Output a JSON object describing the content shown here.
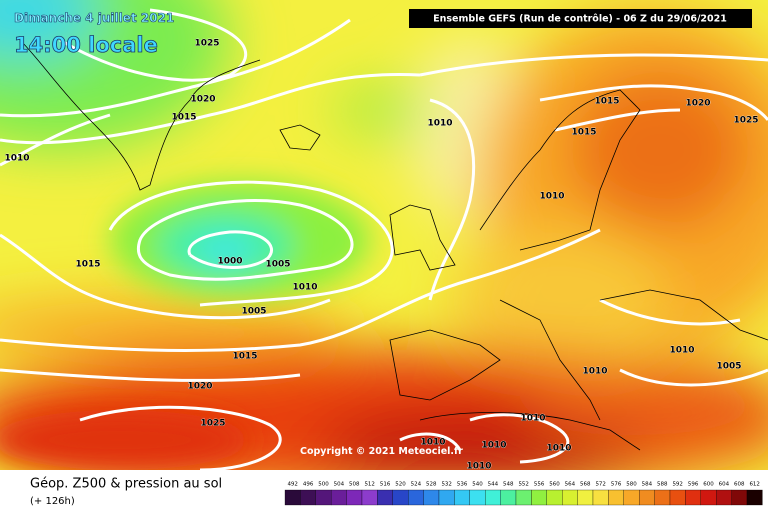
{
  "header": {
    "date": "Dimanche 4 juillet 2021",
    "time": "14:00 locale",
    "model": "Ensemble GEFS  (Run de contrôle)  -  06 Z du 29/06/2021"
  },
  "map": {
    "isobar_labels": [
      "1025",
      "1020",
      "1015",
      "1010",
      "1010",
      "1015",
      "1020",
      "1025",
      "1015",
      "1010",
      "1015",
      "1000",
      "1005",
      "1010",
      "1005",
      "1015",
      "1020",
      "1025",
      "1010",
      "1005",
      "1010",
      "1010",
      "1010",
      "1010",
      "1010",
      "1010"
    ],
    "copyright": "Copyright © 2021 Meteociel.fr"
  },
  "footer": {
    "title": "Géop. Z500 & pression au sol",
    "lead": "(+ 126h)",
    "scale": {
      "labels": [
        "492",
        "496",
        "500",
        "504",
        "508",
        "512",
        "516",
        "520",
        "524",
        "528",
        "532",
        "536",
        "540",
        "544",
        "548",
        "552",
        "556",
        "560",
        "564",
        "568",
        "572",
        "576",
        "580",
        "584",
        "588",
        "592",
        "596",
        "600",
        "604",
        "608",
        "612"
      ],
      "colors": [
        "#2a0a3a",
        "#3d0f55",
        "#54167a",
        "#6a1e9a",
        "#7d28b8",
        "#8c3ccc",
        "#3a2fb0",
        "#2846c8",
        "#2a66dc",
        "#2e88ea",
        "#30a8f0",
        "#34c8f4",
        "#3ce0f0",
        "#40f0d8",
        "#4cf0a0",
        "#6cf070",
        "#90f040",
        "#b8f030",
        "#d8f030",
        "#f0f040",
        "#f8e040",
        "#f8c030",
        "#f8a828",
        "#f08c20",
        "#ec7018",
        "#e85010",
        "#e03010",
        "#d01810",
        "#b01010",
        "#800808",
        "#1a0000"
      ]
    }
  }
}
